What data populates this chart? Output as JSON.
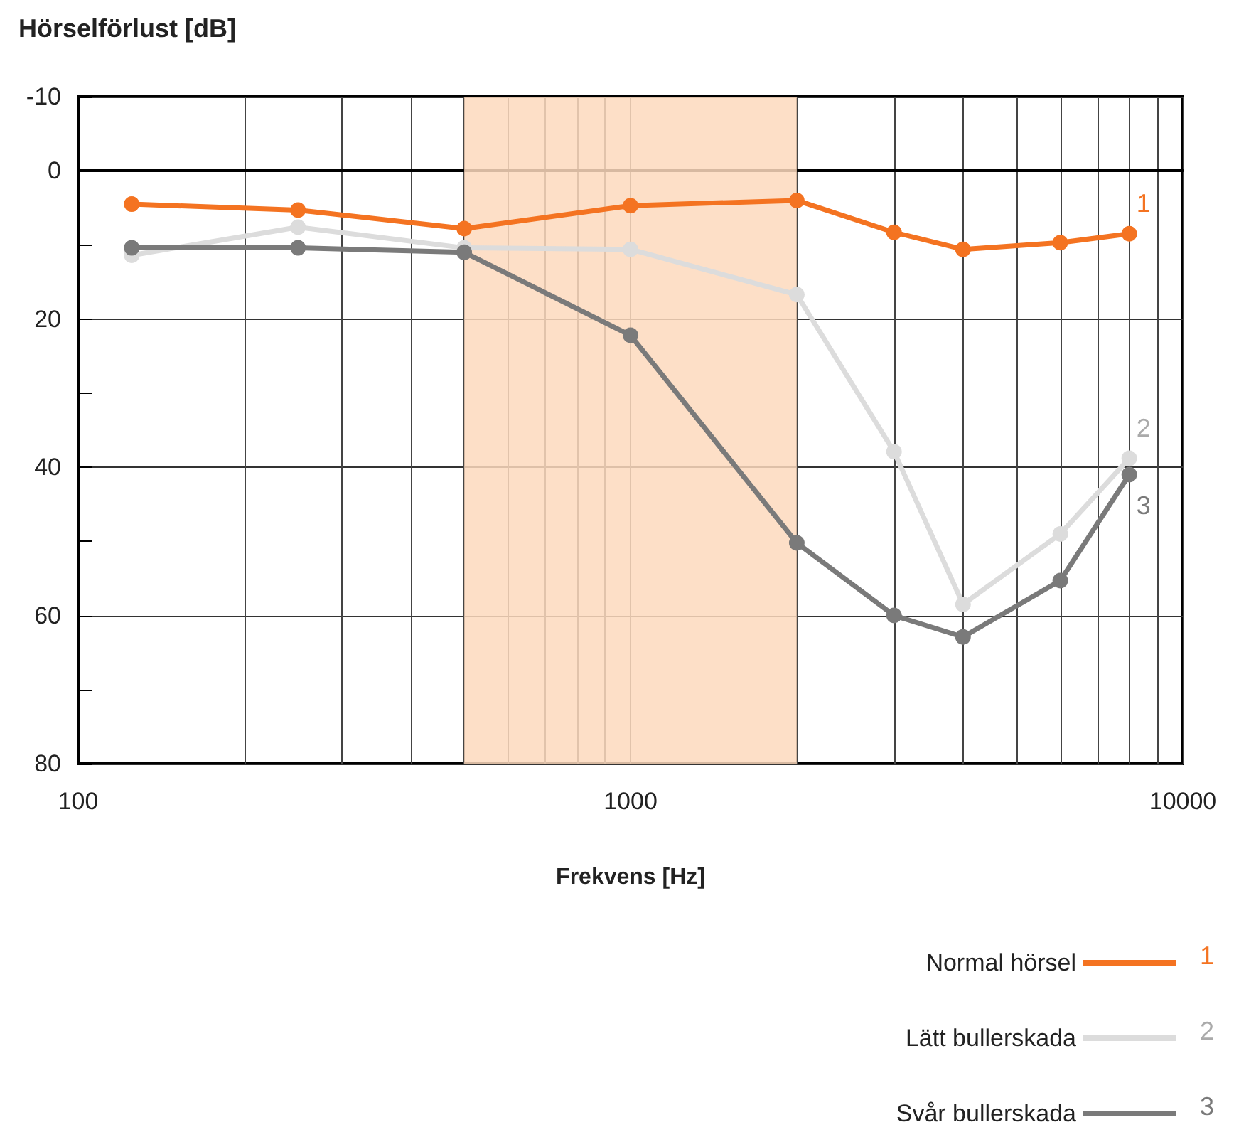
{
  "chart_data": {
    "type": "line",
    "title": "Hörselförlust [dB]",
    "xlabel": "Frekvens [Hz]",
    "x": [
      125,
      250,
      500,
      1000,
      2000,
      3000,
      4000,
      6000,
      8000
    ],
    "series": [
      {
        "name": "Normal hörsel",
        "color": "#f47321",
        "values": [
          4.5,
          5.3,
          7.8,
          4.7,
          4,
          8.3,
          10.6,
          9.7,
          8.5
        ]
      },
      {
        "name": "Lätt bullerskada",
        "color": "#dcdcdc",
        "values": [
          11.4,
          7.6,
          10.4,
          10.6,
          16.7,
          37.9,
          58.5,
          49,
          38.8
        ]
      },
      {
        "name": "Svår bullerskada",
        "color": "#7a7a7a",
        "values": [
          10.4,
          10.4,
          11,
          22.2,
          50.2,
          60,
          62.9,
          55.3,
          41
        ]
      }
    ],
    "bands": [
      {
        "axis": "x",
        "from": 500,
        "to": 2000,
        "color": "#fdd9bd"
      }
    ],
    "annotations": [
      "1",
      "2",
      "3",
      "1",
      "2",
      "3"
    ],
    "log": "x",
    "xlim": [
      100,
      10000
    ],
    "xticks": [
      100,
      {
        "value": 200,
        "label": null
      },
      {
        "value": 300,
        "label": null
      },
      {
        "value": 400,
        "label": null
      },
      {
        "value": 500,
        "label": null
      },
      {
        "value": 600,
        "label": null
      },
      {
        "value": 700,
        "label": null
      },
      {
        "value": 800,
        "label": null
      },
      {
        "value": 900,
        "label": null
      },
      1000,
      {
        "value": 2000,
        "label": null
      },
      {
        "value": 3000,
        "label": null
      },
      {
        "value": 4000,
        "label": null
      },
      {
        "value": 5000,
        "label": null
      },
      {
        "value": 6000,
        "label": null
      },
      {
        "value": 7000,
        "label": null
      },
      {
        "value": 8000,
        "label": null
      },
      {
        "value": 9000,
        "label": null
      },
      10000
    ],
    "ylim": [
      80,
      -10
    ],
    "yticks": [
      -10,
      0,
      {
        "value": 10,
        "label": null
      },
      20,
      {
        "value": 30,
        "label": null
      },
      40,
      {
        "value": 50,
        "label": null
      },
      60,
      {
        "value": 70,
        "label": null
      },
      80
    ],
    "grid": true,
    "legend": "bottom right",
    "marker": "circle",
    "line_style": "solid"
  }
}
